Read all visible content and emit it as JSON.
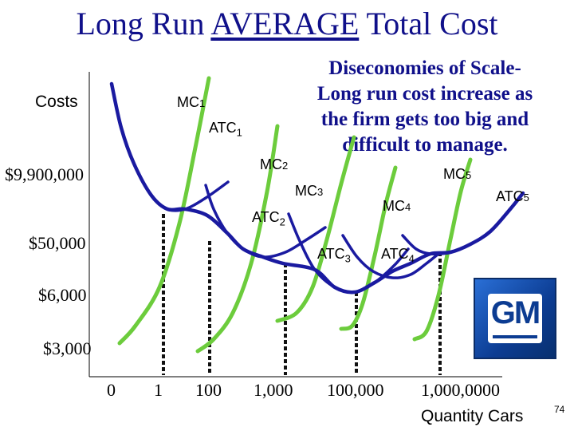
{
  "title": {
    "prefix": "Long Run ",
    "emph": "AVERAGE",
    "suffix": " Total Cost"
  },
  "note_lines": [
    "Diseconomies of Scale-",
    "Long run cost increase as",
    "the firm gets too big and",
    "difficult to manage."
  ],
  "slide_number": "74",
  "logo": {
    "text": "GM"
  },
  "colors": {
    "title": "#10108a",
    "mc": "#6ccc3c",
    "atc": "#1a1aa0",
    "lrac": "#1a1aa0"
  },
  "chart_data": {
    "type": "line",
    "title": "Long Run AVERAGE Total Cost",
    "ylabel": "Costs",
    "xlabel": "Quantity Cars",
    "y_ticks": [
      "$9,900,000",
      "$50,000",
      "$6,000",
      "$3,000"
    ],
    "x_ticks": [
      "0",
      "1",
      "100",
      "1,000",
      "100,000",
      "1,000,0000"
    ],
    "series": [
      {
        "name": "MC1",
        "label_main": "MC",
        "label_sub": "1",
        "kind": "MC",
        "points": [
          [
            150,
            430
          ],
          [
            170,
            408
          ],
          [
            200,
            360
          ],
          [
            225,
            280
          ],
          [
            245,
            185
          ],
          [
            262,
            98
          ]
        ]
      },
      {
        "name": "MC2",
        "label_main": "MC",
        "label_sub": "2",
        "kind": "MC",
        "points": [
          [
            248,
            440
          ],
          [
            268,
            425
          ],
          [
            292,
            392
          ],
          [
            315,
            330
          ],
          [
            335,
            240
          ],
          [
            348,
            158
          ]
        ]
      },
      {
        "name": "MC3",
        "label_main": "MC",
        "label_sub": "3",
        "kind": "MC",
        "points": [
          [
            348,
            402
          ],
          [
            372,
            392
          ],
          [
            392,
            360
          ],
          [
            410,
            300
          ],
          [
            428,
            230
          ],
          [
            444,
            172
          ]
        ]
      },
      {
        "name": "MC4",
        "label_main": "MC",
        "label_sub": "4",
        "kind": "MC",
        "points": [
          [
            428,
            412
          ],
          [
            442,
            408
          ],
          [
            455,
            380
          ],
          [
            470,
            320
          ],
          [
            484,
            255
          ],
          [
            496,
            210
          ]
        ]
      },
      {
        "name": "MC5",
        "label_main": "MC",
        "label_sub": "5",
        "kind": "MC",
        "points": [
          [
            520,
            425
          ],
          [
            535,
            415
          ],
          [
            550,
            370
          ],
          [
            565,
            300
          ],
          [
            578,
            240
          ],
          [
            590,
            200
          ]
        ]
      },
      {
        "name": "ATC1",
        "label_main": "ATC",
        "label_sub": "1",
        "kind": "ATC",
        "points": [
          [
            140,
            105
          ],
          [
            152,
            160
          ],
          [
            168,
            205
          ],
          [
            190,
            245
          ],
          [
            210,
            262
          ],
          [
            232,
            262
          ],
          [
            258,
            248
          ],
          [
            286,
            228
          ]
        ]
      },
      {
        "name": "ATC2",
        "label_main": "ATC",
        "label_sub": "2",
        "kind": "ATC",
        "points": [
          [
            258,
            232
          ],
          [
            268,
            262
          ],
          [
            285,
            292
          ],
          [
            305,
            312
          ],
          [
            330,
            322
          ],
          [
            358,
            316
          ],
          [
            385,
            300
          ],
          [
            408,
            285
          ]
        ]
      },
      {
        "name": "ATC3",
        "label_main": "ATC",
        "label_sub": "3",
        "kind": "ATC",
        "points": [
          [
            362,
            268
          ],
          [
            376,
            302
          ],
          [
            395,
            338
          ],
          [
            420,
            360
          ],
          [
            445,
            366
          ],
          [
            470,
            354
          ],
          [
            495,
            332
          ],
          [
            512,
            312
          ]
        ]
      },
      {
        "name": "ATC4",
        "label_main": "ATC",
        "label_sub": "4",
        "kind": "ATC",
        "points": [
          [
            430,
            295
          ],
          [
            448,
            322
          ],
          [
            468,
            340
          ],
          [
            492,
            348
          ],
          [
            515,
            344
          ],
          [
            535,
            330
          ],
          [
            550,
            318
          ]
        ]
      },
      {
        "name": "ATC5",
        "label_main": "ATC",
        "label_sub": "5",
        "kind": "ATC",
        "points": [
          [
            505,
            295
          ],
          [
            522,
            312
          ],
          [
            540,
            318
          ],
          [
            565,
            316
          ],
          [
            590,
            306
          ],
          [
            615,
            290
          ],
          [
            640,
            262
          ],
          [
            656,
            242
          ]
        ]
      }
    ],
    "lrac": {
      "name": "LRAC",
      "points": [
        [
          140,
          105
        ],
        [
          152,
          160
        ],
        [
          168,
          205
        ],
        [
          190,
          245
        ],
        [
          210,
          262
        ],
        [
          232,
          262
        ],
        [
          260,
          270
        ],
        [
          285,
          292
        ],
        [
          305,
          312
        ],
        [
          330,
          322
        ],
        [
          355,
          330
        ],
        [
          395,
          338
        ],
        [
          420,
          360
        ],
        [
          445,
          366
        ],
        [
          470,
          354
        ],
        [
          492,
          340
        ],
        [
          515,
          330
        ],
        [
          540,
          318
        ],
        [
          565,
          316
        ],
        [
          590,
          306
        ],
        [
          615,
          290
        ],
        [
          640,
          262
        ],
        [
          656,
          242
        ]
      ]
    }
  }
}
